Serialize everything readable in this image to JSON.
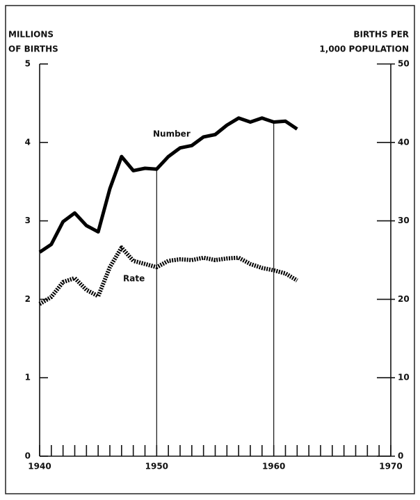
{
  "chart_data": {
    "type": "line",
    "y_label": [
      "MILLIONS",
      "OF BIRTHS"
    ],
    "y2_label": [
      "BIRTHS PER",
      "1,000 POPULATION"
    ],
    "x": [
      1940,
      1941,
      1942,
      1943,
      1944,
      1945,
      1946,
      1947,
      1948,
      1949,
      1950,
      1951,
      1952,
      1953,
      1954,
      1955,
      1956,
      1957,
      1958,
      1959,
      1960,
      1961,
      1962
    ],
    "series": [
      {
        "name": "Number",
        "color": "#000000",
        "values": [
          2.6,
          2.7,
          2.99,
          3.1,
          2.94,
          2.86,
          3.41,
          3.82,
          3.64,
          3.67,
          3.66,
          3.82,
          3.93,
          3.96,
          4.07,
          4.1,
          4.22,
          4.31,
          4.26,
          4.31,
          4.26,
          4.27,
          4.17
        ]
      },
      {
        "name": "Rate",
        "color": "#000000",
        "axis": "y2",
        "values": [
          19.4,
          20.3,
          22.2,
          22.7,
          21.2,
          20.4,
          24.1,
          26.6,
          24.9,
          24.5,
          24.1,
          24.9,
          25.1,
          25.0,
          25.3,
          25.0,
          25.2,
          25.3,
          24.5,
          24.0,
          23.7,
          23.3,
          22.4
        ]
      }
    ],
    "xlim": [
      1940,
      1970
    ],
    "xticks": [
      1940,
      1950,
      1960,
      1970
    ],
    "xminor_ticks": [
      1941,
      1942,
      1943,
      1944,
      1945,
      1946,
      1947,
      1948,
      1949,
      1951,
      1952,
      1953,
      1954,
      1955,
      1956,
      1957,
      1958,
      1959,
      1961,
      1962,
      1963,
      1964,
      1965,
      1966,
      1967,
      1968,
      1969
    ],
    "ylim": [
      0,
      5
    ],
    "yticks": [
      0,
      1,
      2,
      3,
      4,
      5
    ],
    "y2lim": [
      0,
      50
    ],
    "y2ticks": [
      0,
      10,
      20,
      30,
      40,
      50
    ]
  }
}
